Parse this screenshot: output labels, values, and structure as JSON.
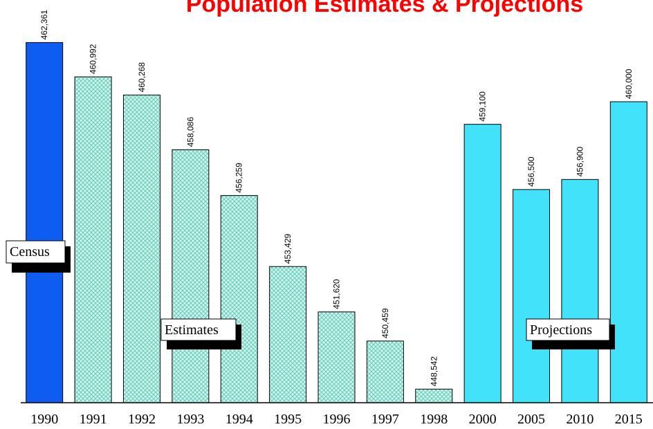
{
  "chart_data": {
    "type": "bar",
    "title": "Population Estimates & Projections",
    "categories": [
      "1990",
      "1991",
      "1992",
      "1993",
      "1994",
      "1995",
      "1996",
      "1997",
      "1998",
      "2000",
      "2005",
      "2010",
      "2015"
    ],
    "series": [
      {
        "name": "Census",
        "color": "#0f5cf0",
        "hatch": false,
        "values": [
          462361,
          null,
          null,
          null,
          null,
          null,
          null,
          null,
          null,
          null,
          null,
          null,
          null
        ],
        "value_labels": [
          "462,361",
          null,
          null,
          null,
          null,
          null,
          null,
          null,
          null,
          null,
          null,
          null,
          null
        ]
      },
      {
        "name": "Estimates",
        "color": "#7fdccb",
        "hatch": true,
        "values": [
          null,
          460992,
          460268,
          458086,
          456259,
          453429,
          451620,
          450459,
          448542,
          null,
          null,
          null,
          null
        ],
        "value_labels": [
          null,
          "460,992",
          "460,268",
          "458,086",
          "456,259",
          "453,429",
          "451,620",
          "450,459",
          "448,542",
          null,
          null,
          null,
          null
        ]
      },
      {
        "name": "Projections",
        "color": "#42e2fb",
        "hatch": false,
        "values": [
          null,
          null,
          null,
          null,
          null,
          null,
          null,
          null,
          null,
          459100,
          456500,
          456900,
          460000
        ],
        "value_labels": [
          null,
          null,
          null,
          null,
          null,
          null,
          null,
          null,
          null,
          "459,100",
          "456,500",
          "456,900",
          "460,000"
        ]
      }
    ],
    "ylim": [
      448000,
      464000
    ]
  }
}
